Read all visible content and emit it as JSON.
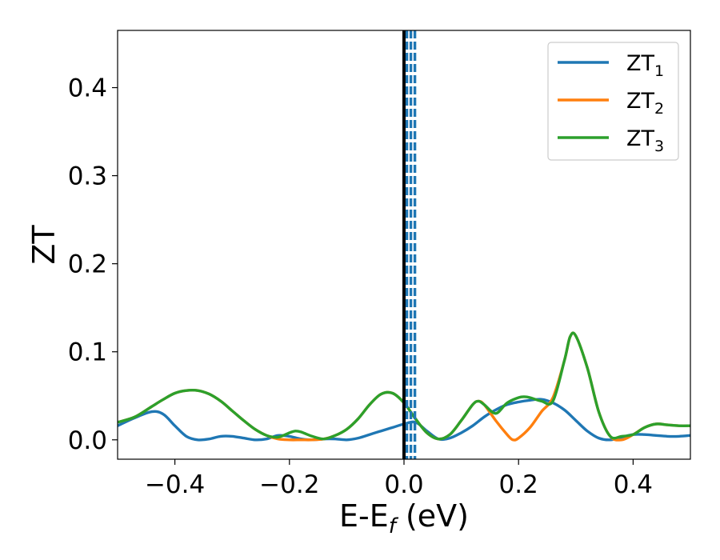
{
  "chart_data": {
    "type": "line",
    "xlabel": "E-E",
    "xlabel_sub": "f",
    "xlabel_unit": " (eV)",
    "ylabel": "ZT",
    "xlim": [
      -0.5,
      0.5
    ],
    "ylim": [
      -0.022,
      0.465
    ],
    "xticks": [
      -0.4,
      -0.2,
      0.0,
      0.2,
      0.4
    ],
    "xtick_labels": [
      "−0.4",
      "−0.2",
      "0.0",
      "0.2",
      "0.4"
    ],
    "yticks": [
      0.0,
      0.1,
      0.2,
      0.3,
      0.4
    ],
    "ytick_labels": [
      "0.0",
      "0.1",
      "0.2",
      "0.3",
      "0.4"
    ],
    "grid": false,
    "legend_position": "top-right",
    "vertical_lines": [
      {
        "x": 0.0,
        "style": "solid",
        "color": "#000000"
      },
      {
        "x": 0.005,
        "style": "dashed",
        "color": "#1f77b4"
      },
      {
        "x": 0.012,
        "style": "dashed",
        "color": "#1f77b4"
      },
      {
        "x": 0.019,
        "style": "dashed",
        "color": "#1f77b4"
      }
    ],
    "series": [
      {
        "name": "ZT",
        "name_sub": "1",
        "color": "#1f77b4",
        "x": [
          -0.5,
          -0.47,
          -0.44,
          -0.42,
          -0.4,
          -0.38,
          -0.36,
          -0.34,
          -0.32,
          -0.3,
          -0.28,
          -0.26,
          -0.24,
          -0.22,
          -0.2,
          -0.18,
          -0.16,
          -0.14,
          -0.12,
          -0.1,
          -0.08,
          -0.06,
          -0.04,
          -0.02,
          0.0,
          0.02,
          0.04,
          0.06,
          0.08,
          0.1,
          0.12,
          0.14,
          0.16,
          0.18,
          0.2,
          0.22,
          0.24,
          0.26,
          0.28,
          0.3,
          0.32,
          0.34,
          0.36,
          0.38,
          0.4,
          0.42,
          0.44,
          0.46,
          0.48,
          0.5
        ],
        "y": [
          0.016,
          0.025,
          0.032,
          0.029,
          0.016,
          0.004,
          0.0,
          0.001,
          0.004,
          0.004,
          0.002,
          0.0,
          0.001,
          0.005,
          0.004,
          0.001,
          0.0,
          0.001,
          0.001,
          0.0,
          0.002,
          0.006,
          0.01,
          0.014,
          0.018,
          0.02,
          0.01,
          0.001,
          0.002,
          0.008,
          0.016,
          0.026,
          0.034,
          0.04,
          0.043,
          0.045,
          0.046,
          0.042,
          0.034,
          0.022,
          0.01,
          0.002,
          0.0,
          0.003,
          0.006,
          0.006,
          0.005,
          0.004,
          0.004,
          0.005
        ]
      },
      {
        "name": "ZT",
        "name_sub": "2",
        "color": "#ff7f0e",
        "x": [
          -0.5,
          -0.47,
          -0.44,
          -0.42,
          -0.4,
          -0.38,
          -0.36,
          -0.34,
          -0.32,
          -0.3,
          -0.28,
          -0.26,
          -0.24,
          -0.22,
          -0.2,
          -0.18,
          -0.16,
          -0.14,
          -0.12,
          -0.1,
          -0.08,
          -0.06,
          -0.04,
          -0.02,
          0.0,
          0.02,
          0.04,
          0.06,
          0.08,
          0.1,
          0.12,
          0.13,
          0.14,
          0.16,
          0.18,
          0.19,
          0.2,
          0.22,
          0.24,
          0.26,
          0.28,
          0.29,
          0.3,
          0.32,
          0.34,
          0.36,
          0.38,
          0.4,
          0.42,
          0.44,
          0.46,
          0.48,
          0.5
        ],
        "y": [
          0.02,
          0.026,
          0.038,
          0.046,
          0.053,
          0.056,
          0.056,
          0.052,
          0.044,
          0.033,
          0.022,
          0.012,
          0.005,
          0.001,
          0.0,
          0.0,
          0.0,
          0.001,
          0.005,
          0.012,
          0.024,
          0.04,
          0.052,
          0.053,
          0.042,
          0.024,
          0.008,
          0.001,
          0.006,
          0.022,
          0.04,
          0.044,
          0.04,
          0.022,
          0.006,
          0.0,
          0.002,
          0.014,
          0.032,
          0.048,
          0.09,
          0.117,
          0.118,
          0.082,
          0.032,
          0.004,
          0.0,
          0.006,
          0.014,
          0.018,
          0.017,
          0.016,
          0.016
        ]
      },
      {
        "name": "ZT",
        "name_sub": "3",
        "color": "#2ca02c",
        "x": [
          -0.5,
          -0.47,
          -0.44,
          -0.42,
          -0.4,
          -0.38,
          -0.36,
          -0.34,
          -0.32,
          -0.3,
          -0.28,
          -0.26,
          -0.24,
          -0.22,
          -0.2,
          -0.19,
          -0.18,
          -0.16,
          -0.14,
          -0.12,
          -0.1,
          -0.08,
          -0.06,
          -0.04,
          -0.02,
          0.0,
          0.02,
          0.04,
          0.06,
          0.08,
          0.1,
          0.12,
          0.13,
          0.14,
          0.16,
          0.18,
          0.2,
          0.21,
          0.22,
          0.24,
          0.26,
          0.28,
          0.29,
          0.3,
          0.32,
          0.34,
          0.36,
          0.38,
          0.4,
          0.42,
          0.44,
          0.46,
          0.48,
          0.5
        ],
        "y": [
          0.02,
          0.026,
          0.038,
          0.046,
          0.053,
          0.056,
          0.056,
          0.052,
          0.044,
          0.033,
          0.022,
          0.012,
          0.005,
          0.003,
          0.008,
          0.01,
          0.009,
          0.004,
          0.001,
          0.005,
          0.012,
          0.024,
          0.04,
          0.052,
          0.053,
          0.042,
          0.024,
          0.008,
          0.001,
          0.006,
          0.022,
          0.04,
          0.044,
          0.04,
          0.03,
          0.042,
          0.048,
          0.049,
          0.048,
          0.044,
          0.044,
          0.09,
          0.117,
          0.118,
          0.082,
          0.032,
          0.004,
          0.004,
          0.006,
          0.014,
          0.018,
          0.017,
          0.016,
          0.016
        ]
      }
    ]
  }
}
